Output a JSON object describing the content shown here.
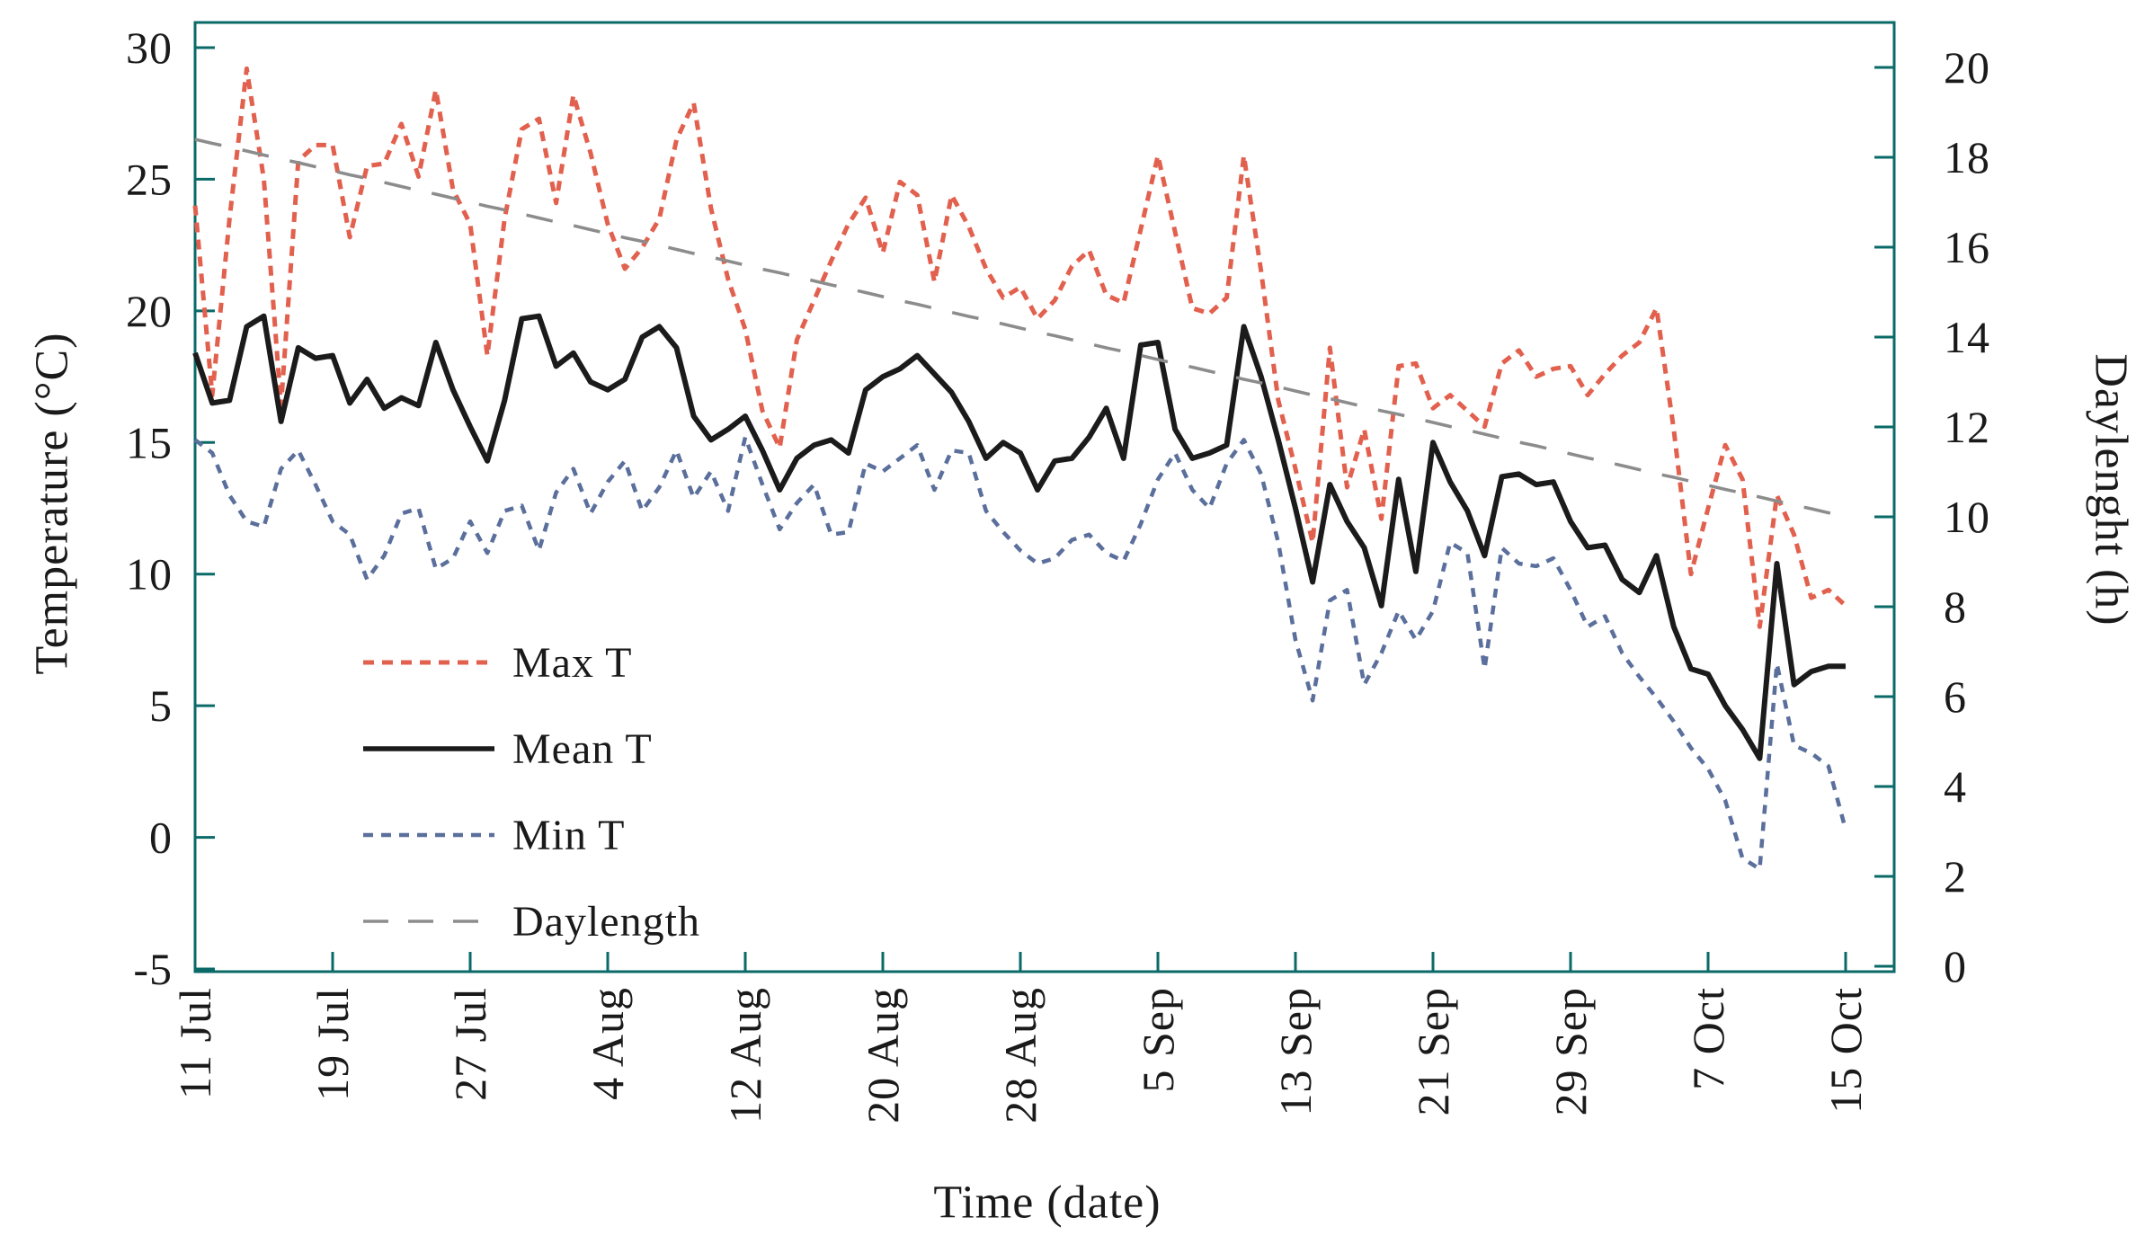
{
  "figure": {
    "background_color": "#ffffff",
    "text_color": "#1a1a1a"
  },
  "legend": {
    "items": [
      {
        "label": "Max T",
        "color": "#e2604e",
        "dash": "12 9",
        "sample_width": 5
      },
      {
        "label": "Mean T",
        "color": "#1b1b1b",
        "dash": "",
        "sample_width": 5.5
      },
      {
        "label": "Min T",
        "color": "#5b6f9c",
        "dash": "11 9",
        "sample_width": 4.5
      },
      {
        "label": "Daylength",
        "color": "#8c8c8c",
        "dash": "28 22",
        "sample_width": 3.5
      }
    ]
  },
  "chart_data": {
    "type": "line",
    "title": "",
    "grid": "off",
    "legend_position": "inside-lower-left",
    "style": {
      "frame_color": "#0a6a68",
      "tick_color": "#0a6a68"
    },
    "x_axis": {
      "title": "Time (date)",
      "unit": "day index from 11 Jul (one point per day)",
      "tick_days": [
        0,
        8,
        16,
        24,
        32,
        40,
        48,
        56,
        64,
        72,
        80,
        88,
        96
      ],
      "tick_labels": [
        "11 Jul",
        "19 Jul",
        "27 Jul",
        "4 Aug",
        "12 Aug",
        "20 Aug",
        "28 Aug",
        "5 Sep",
        "13 Sep",
        "21 Sep",
        "29 Sep",
        "7 Oct",
        "15 Oct"
      ]
    },
    "left_axis": {
      "title": "Temperature (°C)",
      "range": [
        -5,
        30
      ],
      "ticks": [
        30,
        25,
        20,
        15,
        10,
        5,
        0,
        -5
      ]
    },
    "right_axis": {
      "title": "Daylenght (h)",
      "range": [
        0,
        20
      ],
      "ticks": [
        20,
        18,
        16,
        14,
        12,
        10,
        8,
        6,
        4,
        2,
        0
      ]
    },
    "series": [
      {
        "id": "max-t",
        "name": "Max T",
        "axis": "left",
        "color": "#e2604e",
        "dash": "11 8",
        "width": 5,
        "values": [
          24.0,
          16.8,
          23.5,
          29.2,
          25.0,
          16.4,
          25.7,
          26.3,
          26.3,
          22.8,
          25.5,
          25.6,
          27.1,
          25.1,
          28.4,
          24.6,
          23.3,
          18.3,
          23.5,
          26.9,
          27.3,
          24.1,
          28.2,
          26.0,
          23.3,
          21.6,
          22.4,
          23.5,
          26.5,
          27.9,
          23.9,
          21.2,
          19.3,
          16.2,
          14.8,
          18.9,
          20.4,
          21.9,
          23.3,
          24.3,
          22.2,
          24.9,
          24.4,
          21.1,
          24.4,
          23.2,
          21.6,
          20.5,
          20.9,
          19.7,
          20.4,
          21.7,
          22.3,
          20.6,
          20.3,
          23.1,
          25.9,
          23.0,
          20.1,
          19.9,
          20.5,
          25.9,
          21.5,
          16.6,
          14.0,
          11.2,
          18.6,
          13.3,
          15.5,
          12.1,
          17.9,
          18.0,
          16.3,
          16.8,
          16.2,
          15.6,
          18.0,
          18.5,
          17.5,
          17.8,
          17.9,
          16.8,
          17.6,
          18.3,
          18.8,
          20.1,
          15.5,
          10.0,
          12.5,
          14.9,
          13.6,
          8.0,
          13.0,
          11.5,
          9.1,
          9.4,
          8.8
        ]
      },
      {
        "id": "mean-t",
        "name": "Mean T",
        "axis": "left",
        "color": "#1b1b1b",
        "dash": "",
        "width": 6,
        "values": [
          18.4,
          16.5,
          16.6,
          19.4,
          19.8,
          15.8,
          18.6,
          18.2,
          18.3,
          16.5,
          17.4,
          16.3,
          16.7,
          16.4,
          18.8,
          17.0,
          15.6,
          14.3,
          16.6,
          19.7,
          19.8,
          17.9,
          18.4,
          17.3,
          17.0,
          17.4,
          19.0,
          19.4,
          18.6,
          16.0,
          15.1,
          15.5,
          16.0,
          14.7,
          13.2,
          14.4,
          14.9,
          15.1,
          14.6,
          17.0,
          17.5,
          17.8,
          18.3,
          17.6,
          16.9,
          15.8,
          14.4,
          15.0,
          14.6,
          13.2,
          14.3,
          14.4,
          15.2,
          16.3,
          14.4,
          18.7,
          18.8,
          15.5,
          14.4,
          14.6,
          14.9,
          19.4,
          17.5,
          15.1,
          12.5,
          9.7,
          13.4,
          12.0,
          11.0,
          8.8,
          13.6,
          10.1,
          15.0,
          13.5,
          12.4,
          10.7,
          13.7,
          13.8,
          13.4,
          13.5,
          12.0,
          11.0,
          11.1,
          9.8,
          9.3,
          10.7,
          8.0,
          6.4,
          6.2,
          5.0,
          4.1,
          3.0,
          10.4,
          5.8,
          6.3,
          6.5,
          6.5
        ]
      },
      {
        "id": "min-t",
        "name": "Min T",
        "axis": "left",
        "color": "#5b6f9c",
        "dash": "10 9",
        "width": 4.5,
        "values": [
          15.1,
          14.6,
          13.0,
          12.0,
          11.8,
          14.0,
          14.7,
          13.4,
          12.0,
          11.5,
          9.8,
          10.7,
          12.3,
          12.5,
          10.2,
          10.6,
          12.0,
          10.8,
          12.4,
          12.6,
          10.9,
          13.1,
          14.0,
          12.3,
          13.5,
          14.3,
          12.4,
          13.3,
          14.7,
          12.9,
          13.9,
          12.4,
          15.2,
          13.4,
          11.7,
          12.7,
          13.4,
          11.5,
          11.6,
          14.2,
          13.9,
          14.4,
          14.9,
          13.2,
          14.7,
          14.6,
          12.4,
          11.6,
          10.9,
          10.4,
          10.6,
          11.3,
          11.5,
          10.8,
          10.5,
          11.9,
          13.6,
          14.6,
          13.2,
          12.5,
          14.2,
          15.1,
          13.8,
          11.2,
          7.5,
          5.2,
          9.0,
          9.4,
          5.8,
          7.0,
          8.6,
          7.5,
          8.6,
          11.2,
          10.8,
          6.4,
          11.0,
          10.4,
          10.3,
          10.6,
          9.4,
          8.0,
          8.4,
          7.0,
          6.1,
          5.3,
          4.4,
          3.4,
          2.6,
          1.4,
          -0.8,
          -1.2,
          6.6,
          3.5,
          3.2,
          2.7,
          0.3
        ]
      },
      {
        "id": "daylength",
        "name": "Daylength",
        "axis": "right",
        "color": "#8c8c8c",
        "dash": "30 24",
        "width": 3.5,
        "values": [
          18.4,
          18.31,
          18.23,
          18.14,
          18.05,
          17.96,
          17.88,
          17.79,
          17.7,
          17.61,
          17.53,
          17.44,
          17.35,
          17.26,
          17.18,
          17.09,
          17.0,
          16.91,
          16.83,
          16.74,
          16.65,
          16.56,
          16.48,
          16.39,
          16.3,
          16.21,
          16.13,
          16.04,
          15.95,
          15.86,
          15.78,
          15.69,
          15.6,
          15.51,
          15.43,
          15.34,
          15.25,
          15.16,
          15.08,
          14.99,
          14.9,
          14.81,
          14.73,
          14.64,
          14.55,
          14.46,
          14.38,
          14.29,
          14.2,
          14.11,
          14.03,
          13.94,
          13.85,
          13.76,
          13.68,
          13.59,
          13.5,
          13.41,
          13.33,
          13.24,
          13.15,
          13.06,
          12.98,
          12.89,
          12.8,
          12.71,
          12.63,
          12.54,
          12.45,
          12.36,
          12.28,
          12.19,
          12.1,
          12.01,
          11.93,
          11.84,
          11.75,
          11.66,
          11.58,
          11.49,
          11.4,
          11.31,
          11.23,
          11.14,
          11.05,
          10.96,
          10.88,
          10.79,
          10.7,
          10.61,
          10.53,
          10.44,
          10.35,
          10.26,
          10.18,
          10.09,
          10.0
        ]
      }
    ]
  }
}
